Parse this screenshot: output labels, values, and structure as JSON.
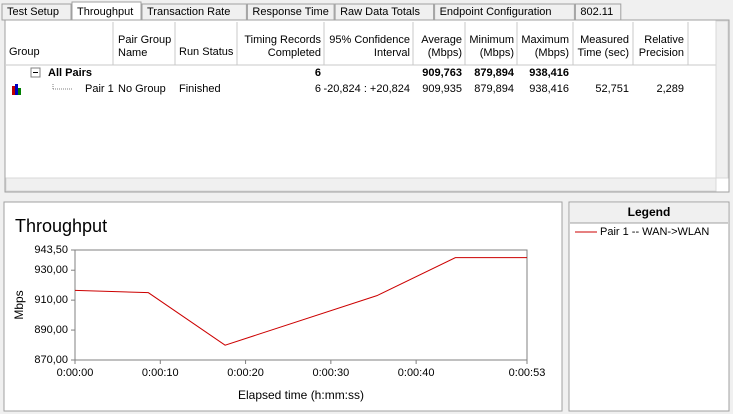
{
  "tabs": [
    "Test Setup",
    "Throughput",
    "Transaction Rate",
    "Response Time",
    "Raw Data Totals",
    "Endpoint Configuration",
    "802.11"
  ],
  "active_tab": 1,
  "table": {
    "columns": [
      [
        "Group"
      ],
      [
        "Pair Group",
        "Name"
      ],
      [
        "Run Status"
      ],
      [
        "Timing Records",
        "Completed"
      ],
      [
        "95% Confidence",
        "Interval"
      ],
      [
        "Average",
        "(Mbps)"
      ],
      [
        "Minimum",
        "(Mbps)"
      ],
      [
        "Maximum",
        "(Mbps)"
      ],
      [
        "Measured",
        "Time (sec)"
      ],
      [
        "Relative",
        "Precision"
      ]
    ],
    "rows": [
      [
        "All Pairs",
        null,
        null,
        "6",
        null,
        "909,763",
        "879,894",
        "938,416",
        null,
        null
      ],
      [
        "Pair 1",
        "No Group",
        "Finished",
        "6",
        "-20,824 : +20,824",
        "909,935",
        "879,894",
        "938,416",
        "52,751",
        "2,289"
      ]
    ]
  },
  "chart_data": {
    "type": "line",
    "title": "Throughput",
    "y_label": "Mbps",
    "x_label": "Elapsed time (h:mm:ss)",
    "x": [
      0,
      8.6,
      17.6,
      35.4,
      44.6,
      53
    ],
    "series": [
      {
        "name": "Pair 1 -- WAN->WLAN",
        "color": "#cc0000",
        "values": [
          916.5,
          915.0,
          879.9,
          913.0,
          938.4,
          938.4
        ]
      }
    ],
    "xlim": [
      0,
      53
    ],
    "xticks": [
      {
        "value": 0,
        "label": "0:00:00"
      },
      {
        "value": 10,
        "label": "0:00:10"
      },
      {
        "value": 20,
        "label": "0:00:20"
      },
      {
        "value": 30,
        "label": "0:00:30"
      },
      {
        "value": 40,
        "label": "0:00:40"
      },
      {
        "value": 53,
        "label": "0:00:53"
      }
    ],
    "ylim": [
      870,
      943.5
    ],
    "yticks": [
      {
        "value": 870,
        "label": "870,00"
      },
      {
        "value": 890,
        "label": "890,00"
      },
      {
        "value": 910,
        "label": "910,00"
      },
      {
        "value": 930,
        "label": "930,00"
      },
      {
        "value": 943.5,
        "label": "943,50"
      }
    ],
    "grid": false,
    "legend_title": "Legend"
  }
}
